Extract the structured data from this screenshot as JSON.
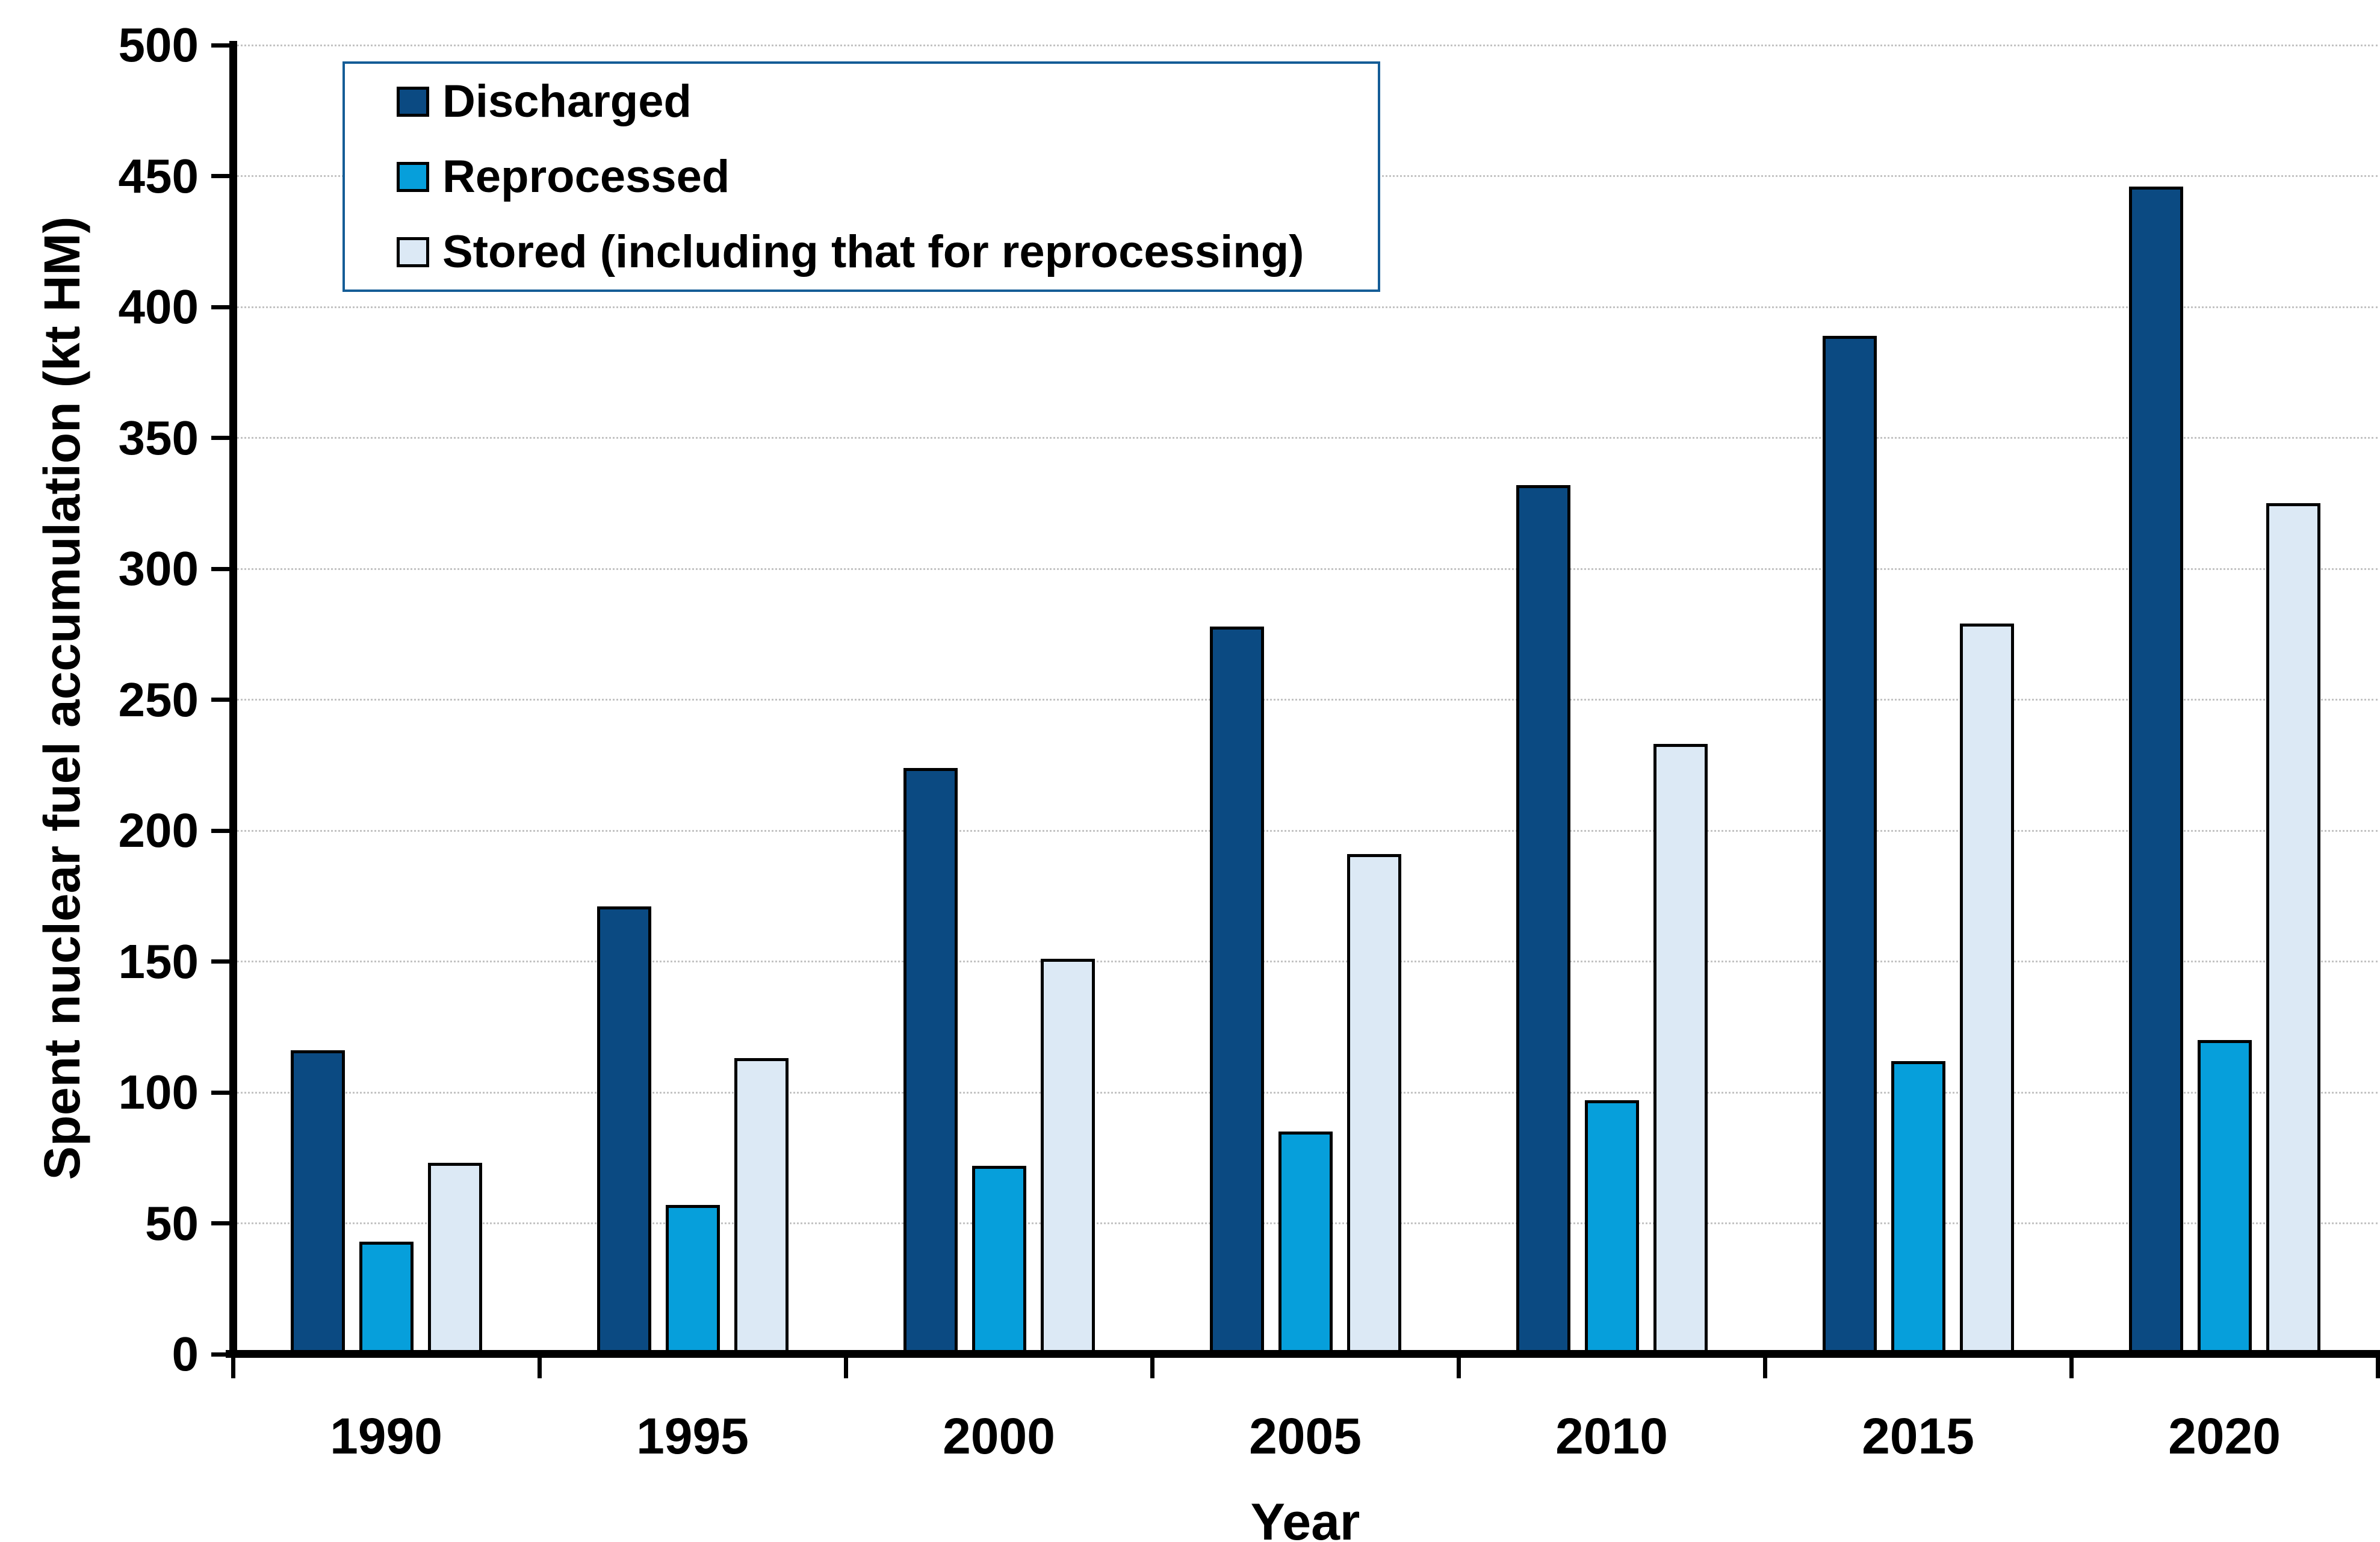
{
  "chart_data": {
    "type": "bar",
    "title": "",
    "xlabel": "Year",
    "ylabel": "Spent nuclear fuel accumulation (kt HM)",
    "categories": [
      "1990",
      "1995",
      "2000",
      "2005",
      "2010",
      "2015",
      "2020"
    ],
    "series": [
      {
        "name": "Discharged",
        "color": "#0B4A82",
        "values": [
          116,
          171,
          224,
          278,
          332,
          389,
          446
        ]
      },
      {
        "name": "Reprocessed",
        "color": "#069FDB",
        "values": [
          43,
          57,
          72,
          85,
          97,
          112,
          120
        ]
      },
      {
        "name": "Stored (including that for reprocessing)",
        "color": "#DCE9F5",
        "values": [
          73,
          113,
          151,
          191,
          233,
          279,
          325
        ]
      }
    ],
    "ylim": [
      0,
      500
    ],
    "ytick_step": 50,
    "yticks": [
      "0",
      "50",
      "100",
      "150",
      "200",
      "250",
      "300",
      "350",
      "400",
      "450",
      "500"
    ],
    "grid": true,
    "legend_position": "top-left",
    "colors": {
      "axis": "#000000",
      "gridline": "#C3C3C3",
      "bar_outline": "#000000",
      "legend_border": "#155D97",
      "background": "#FFFFFF"
    }
  }
}
